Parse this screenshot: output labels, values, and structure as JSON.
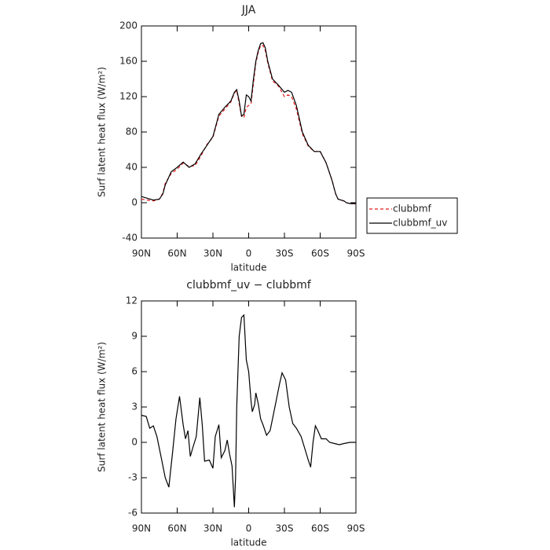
{
  "chart_data": [
    {
      "type": "line",
      "title": "JJA",
      "xlabel": "latitude",
      "ylabel": "Surf latent heat flux (W/m²)",
      "xlim": [
        90,
        -90
      ],
      "ylim": [
        -40,
        200
      ],
      "xticks": [
        {
          "value": 90,
          "label": "90N"
        },
        {
          "value": 60,
          "label": "60N"
        },
        {
          "value": 30,
          "label": "30N"
        },
        0,
        {
          "value": -30,
          "label": "30S"
        },
        {
          "value": -60,
          "label": "60S"
        },
        {
          "value": -90,
          "label": "90S"
        }
      ],
      "yticks": [
        -40,
        0,
        40,
        80,
        120,
        160,
        200
      ],
      "legend": "right",
      "x": [
        90,
        85,
        80,
        75,
        72,
        70,
        65,
        60,
        55,
        50,
        45,
        40,
        35,
        30,
        25,
        20,
        15,
        12,
        10,
        8,
        6,
        4,
        2,
        0,
        -2,
        -4,
        -6,
        -8,
        -10,
        -12,
        -14,
        -16,
        -18,
        -20,
        -25,
        -30,
        -33,
        -36,
        -40,
        -45,
        -50,
        -55,
        -60,
        -65,
        -70,
        -73,
        -75,
        -80,
        -82,
        -85,
        -90
      ],
      "series": [
        {
          "name": "clubbmf",
          "color": "#e8191c",
          "dash": true,
          "values": [
            4,
            3,
            2,
            4,
            11,
            22,
            33,
            38,
            45,
            41,
            42,
            53,
            66,
            74,
            98,
            106,
            114,
            124,
            127,
            112,
            98,
            96,
            108,
            110,
            112,
            135,
            158,
            170,
            178,
            178,
            172,
            158,
            148,
            138,
            132,
            120,
            122,
            120,
            106,
            78,
            64,
            58,
            58,
            45,
            25,
            10,
            4,
            2,
            0,
            -1,
            -1
          ]
        },
        {
          "name": "clubbmf_uv",
          "color": "#000000",
          "values": [
            7,
            5,
            3,
            4,
            10,
            20,
            35,
            40,
            46,
            40,
            44,
            55,
            65,
            75,
            100,
            108,
            115,
            125,
            128,
            115,
            98,
            100,
            122,
            120,
            115,
            140,
            160,
            172,
            180,
            181,
            175,
            160,
            150,
            140,
            133,
            125,
            127,
            125,
            110,
            80,
            65,
            58,
            58,
            45,
            25,
            10,
            4,
            2,
            0,
            -1,
            -1
          ]
        }
      ]
    },
    {
      "type": "line",
      "title": "clubbmf_uv − clubbmf",
      "xlabel": "latitude",
      "ylabel": "Surf latent heat flux (W/m²)",
      "xlim": [
        90,
        -90
      ],
      "ylim": [
        -6,
        12
      ],
      "xticks": [
        {
          "value": 90,
          "label": "90N"
        },
        {
          "value": 60,
          "label": "60N"
        },
        {
          "value": 30,
          "label": "30N"
        },
        0,
        {
          "value": -30,
          "label": "30S"
        },
        {
          "value": -60,
          "label": "60S"
        },
        {
          "value": -90,
          "label": "90S"
        }
      ],
      "yticks": [
        -6,
        -3,
        0,
        3,
        6,
        9,
        12
      ],
      "x": [
        90,
        86,
        83,
        80,
        77,
        74,
        70,
        67,
        64,
        61,
        58,
        55,
        53,
        51,
        49,
        47,
        44,
        41,
        39,
        37,
        33,
        30,
        28,
        25,
        23,
        20,
        18,
        16,
        14,
        12,
        11,
        10,
        8,
        6,
        4,
        2,
        0,
        -2,
        -3,
        -5,
        -6,
        -8,
        -10,
        -12,
        -15,
        -18,
        -22,
        -26,
        -28,
        -31,
        -34,
        -37,
        -40,
        -44,
        -47,
        -50,
        -52,
        -54,
        -56,
        -58,
        -61,
        -65,
        -68,
        -72,
        -76,
        -80,
        -85,
        -90
      ],
      "series": [
        {
          "color": "#000000",
          "values": [
            2.3,
            2.2,
            1.2,
            1.4,
            0.5,
            -1,
            -3,
            -3.8,
            -1,
            2,
            3.9,
            1.5,
            0.3,
            1,
            -1.2,
            -0.5,
            0.5,
            3.8,
            1.5,
            -1.6,
            -1.5,
            -2.2,
            0.5,
            1.5,
            -1.3,
            -0.7,
            0.2,
            -1,
            -2,
            -5.5,
            -3,
            3,
            9,
            10.6,
            10.8,
            7,
            6,
            3.5,
            2.6,
            3.2,
            4.2,
            3.3,
            2,
            1.5,
            0.6,
            1,
            3,
            5,
            5.9,
            5.3,
            3,
            1.6,
            1.2,
            0.5,
            -0.5,
            -1.5,
            -2.1,
            0,
            1.4,
            1,
            0.3,
            0.3,
            0,
            -0.1,
            -0.2,
            -0.1,
            0,
            0
          ]
        }
      ]
    }
  ]
}
